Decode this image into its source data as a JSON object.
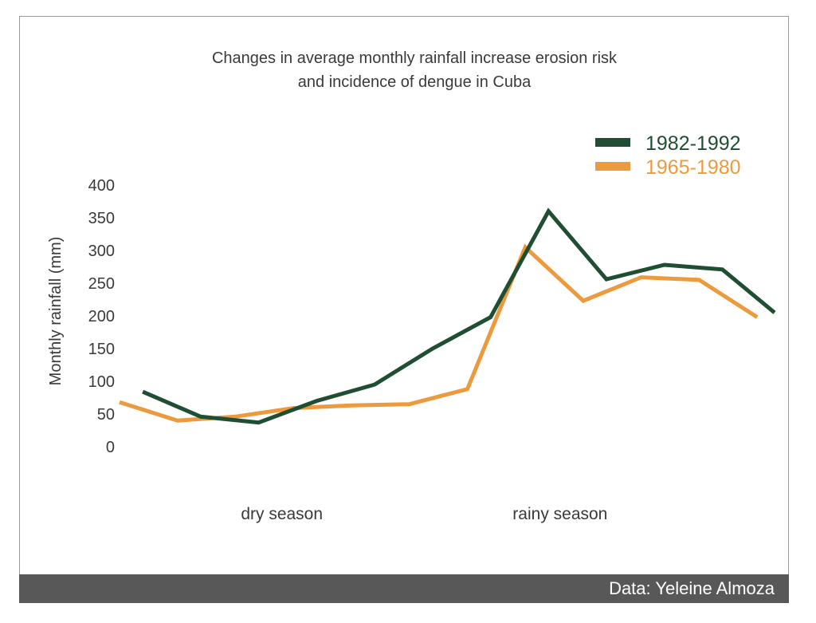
{
  "footer": {
    "credit": "Data: Yeleine Almoza"
  },
  "chart_data": {
    "type": "line",
    "title_lines": [
      "Changes in average monthly rainfall increase erosion risk",
      "and incidence of dengue in Cuba"
    ],
    "ylabel": "Monthly rainfall (mm)",
    "xlabel": "",
    "ylim": [
      0,
      400
    ],
    "yticks": [
      0,
      50,
      100,
      150,
      200,
      250,
      300,
      350,
      400
    ],
    "x": [
      0,
      1,
      2,
      3,
      4,
      5,
      6,
      7,
      8,
      9,
      10,
      11
    ],
    "xlim": [
      0,
      11.3
    ],
    "season_labels": [
      {
        "text": "dry season",
        "x": 2.8
      },
      {
        "text": "rainy season",
        "x": 7.6
      }
    ],
    "grid": false,
    "legend": "top-right",
    "series": [
      {
        "name": "1982-1992",
        "color": "#1f4e32",
        "x": [
          0.4,
          1.4,
          2.4,
          3.4,
          4.4,
          5.4,
          6.4,
          7.4,
          8.4,
          9.4,
          10.4,
          11.3
        ],
        "values": [
          84,
          46,
          37,
          70,
          95,
          150,
          198,
          360,
          256,
          278,
          271,
          205
        ]
      },
      {
        "name": "1965-1980",
        "color": "#ec9a3d",
        "x": [
          0,
          1,
          2,
          3,
          4,
          5,
          6,
          7,
          8,
          9,
          10,
          11
        ],
        "values": [
          68,
          40,
          46,
          59,
          63,
          65,
          88,
          305,
          223,
          259,
          255,
          198
        ]
      }
    ]
  }
}
